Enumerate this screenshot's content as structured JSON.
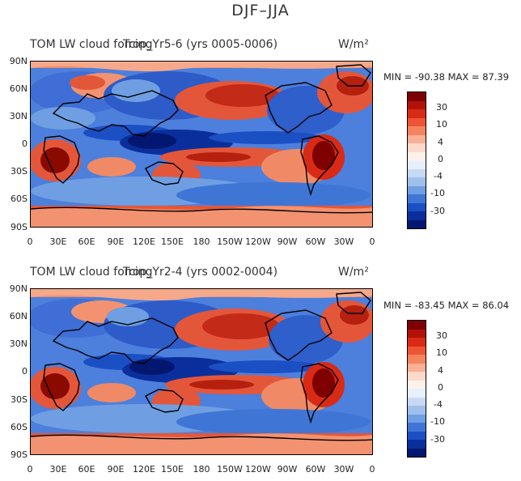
{
  "figure": {
    "title": "DJF–JJA"
  },
  "panels": [
    {
      "id": "top",
      "title": "TOM LW cloud forcing",
      "subtitle": "Trop_Yr5-6 (yrs 0005-0006)",
      "units": "W/m²",
      "min_max": "MIN = -90.38  MAX =  87.39"
    },
    {
      "id": "bottom",
      "title": "TOM LW cloud forcing",
      "subtitle": "Trop_Yr2-4 (yrs 0002-0004)",
      "units": "W/m²",
      "min_max": "MIN = -83.45  MAX =  86.04"
    }
  ],
  "axes": {
    "lat_labels": [
      "90N",
      "60N",
      "30N",
      "0",
      "30S",
      "60S",
      "90S"
    ],
    "lon_labels": [
      "0",
      "30E",
      "60E",
      "90E",
      "120E",
      "150E",
      "180",
      "150W",
      "120W",
      "90W",
      "60W",
      "30W",
      "0"
    ]
  },
  "colorbar": {
    "labels": [
      "30",
      "10",
      "4",
      "0",
      "-4",
      "-10",
      "-30"
    ],
    "colors": [
      "#7f0000",
      "#b01208",
      "#d92a16",
      "#ee5535",
      "#f5845e",
      "#f9b095",
      "#fcd9c8",
      "#fdf1ea",
      "#e8f1fb",
      "#c6daf4",
      "#9fc0ec",
      "#6f9fe2",
      "#3f76d6",
      "#1b4fc4",
      "#0a2f9c",
      "#031770"
    ]
  }
}
